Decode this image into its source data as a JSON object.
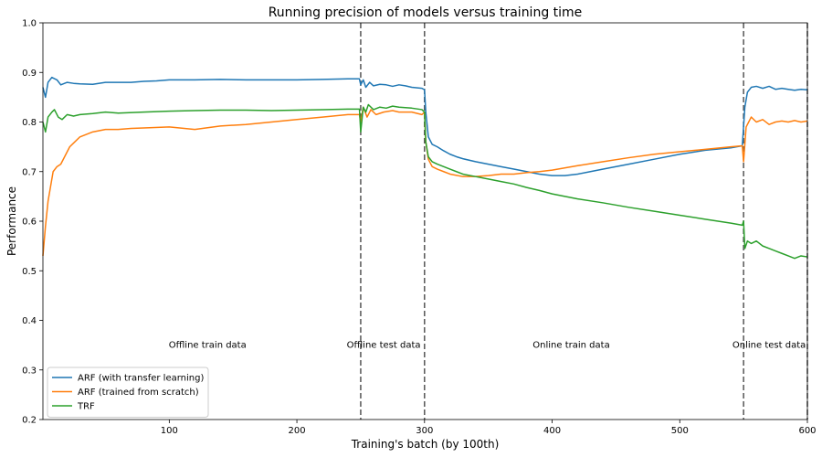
{
  "chart_data": {
    "type": "line",
    "title": "Running precision of models versus training time",
    "xlabel": "Training's batch (by 100th)",
    "ylabel": "Performance",
    "xlim": [
      1,
      600
    ],
    "ylim": [
      0.2,
      1.0
    ],
    "xticks": [
      100,
      200,
      300,
      400,
      500,
      600
    ],
    "yticks": [
      0.2,
      0.3,
      0.4,
      0.5,
      0.6,
      0.7,
      0.8,
      0.9,
      1.0
    ],
    "grid": false,
    "legend_position": "bottom-left",
    "vlines": [
      250,
      300,
      550,
      600
    ],
    "annotations": [
      {
        "text": "Offline train data",
        "x": 130,
        "y": 0.35
      },
      {
        "text": "Offline test data",
        "x": 268,
        "y": 0.35
      },
      {
        "text": "Online train data",
        "x": 415,
        "y": 0.35
      },
      {
        "text": "Online test data",
        "x": 570,
        "y": 0.35
      }
    ],
    "series": [
      {
        "name": "ARF (with transfer learning)",
        "color": "#1f77b4",
        "points": [
          [
            1,
            0.87
          ],
          [
            3,
            0.85
          ],
          [
            5,
            0.88
          ],
          [
            8,
            0.89
          ],
          [
            12,
            0.885
          ],
          [
            15,
            0.875
          ],
          [
            20,
            0.88
          ],
          [
            25,
            0.878
          ],
          [
            30,
            0.877
          ],
          [
            40,
            0.876
          ],
          [
            50,
            0.88
          ],
          [
            60,
            0.88
          ],
          [
            70,
            0.88
          ],
          [
            80,
            0.882
          ],
          [
            90,
            0.883
          ],
          [
            100,
            0.885
          ],
          [
            120,
            0.885
          ],
          [
            140,
            0.886
          ],
          [
            160,
            0.885
          ],
          [
            180,
            0.885
          ],
          [
            200,
            0.885
          ],
          [
            220,
            0.886
          ],
          [
            240,
            0.887
          ],
          [
            249,
            0.887
          ],
          [
            250,
            0.875
          ],
          [
            252,
            0.885
          ],
          [
            254,
            0.87
          ],
          [
            257,
            0.88
          ],
          [
            260,
            0.873
          ],
          [
            265,
            0.876
          ],
          [
            270,
            0.875
          ],
          [
            275,
            0.872
          ],
          [
            280,
            0.875
          ],
          [
            285,
            0.873
          ],
          [
            290,
            0.87
          ],
          [
            298,
            0.868
          ],
          [
            300,
            0.865
          ],
          [
            301,
            0.82
          ],
          [
            303,
            0.77
          ],
          [
            306,
            0.755
          ],
          [
            310,
            0.75
          ],
          [
            315,
            0.742
          ],
          [
            320,
            0.735
          ],
          [
            325,
            0.73
          ],
          [
            330,
            0.726
          ],
          [
            340,
            0.72
          ],
          [
            350,
            0.715
          ],
          [
            360,
            0.71
          ],
          [
            370,
            0.705
          ],
          [
            380,
            0.7
          ],
          [
            390,
            0.695
          ],
          [
            400,
            0.692
          ],
          [
            410,
            0.692
          ],
          [
            420,
            0.695
          ],
          [
            430,
            0.7
          ],
          [
            440,
            0.705
          ],
          [
            460,
            0.715
          ],
          [
            480,
            0.725
          ],
          [
            500,
            0.735
          ],
          [
            520,
            0.743
          ],
          [
            540,
            0.748
          ],
          [
            549,
            0.752
          ],
          [
            551,
            0.83
          ],
          [
            553,
            0.86
          ],
          [
            556,
            0.87
          ],
          [
            560,
            0.872
          ],
          [
            565,
            0.868
          ],
          [
            570,
            0.872
          ],
          [
            575,
            0.866
          ],
          [
            580,
            0.868
          ],
          [
            585,
            0.866
          ],
          [
            590,
            0.864
          ],
          [
            595,
            0.866
          ],
          [
            600,
            0.865
          ]
        ]
      },
      {
        "name": "ARF (trained from scratch)",
        "color": "#ff7f0e",
        "points": [
          [
            1,
            0.53
          ],
          [
            3,
            0.59
          ],
          [
            5,
            0.64
          ],
          [
            7,
            0.67
          ],
          [
            9,
            0.7
          ],
          [
            12,
            0.71
          ],
          [
            15,
            0.715
          ],
          [
            18,
            0.73
          ],
          [
            22,
            0.75
          ],
          [
            26,
            0.76
          ],
          [
            30,
            0.77
          ],
          [
            35,
            0.775
          ],
          [
            40,
            0.78
          ],
          [
            50,
            0.785
          ],
          [
            60,
            0.785
          ],
          [
            70,
            0.787
          ],
          [
            80,
            0.788
          ],
          [
            100,
            0.79
          ],
          [
            120,
            0.785
          ],
          [
            140,
            0.792
          ],
          [
            160,
            0.795
          ],
          [
            180,
            0.8
          ],
          [
            200,
            0.805
          ],
          [
            220,
            0.81
          ],
          [
            240,
            0.815
          ],
          [
            249,
            0.815
          ],
          [
            250,
            0.8
          ],
          [
            252,
            0.83
          ],
          [
            255,
            0.81
          ],
          [
            258,
            0.825
          ],
          [
            262,
            0.815
          ],
          [
            268,
            0.82
          ],
          [
            275,
            0.823
          ],
          [
            280,
            0.82
          ],
          [
            290,
            0.82
          ],
          [
            298,
            0.815
          ],
          [
            300,
            0.82
          ],
          [
            301,
            0.76
          ],
          [
            303,
            0.725
          ],
          [
            306,
            0.71
          ],
          [
            310,
            0.705
          ],
          [
            315,
            0.7
          ],
          [
            320,
            0.695
          ],
          [
            330,
            0.69
          ],
          [
            340,
            0.69
          ],
          [
            350,
            0.692
          ],
          [
            360,
            0.695
          ],
          [
            370,
            0.695
          ],
          [
            380,
            0.698
          ],
          [
            390,
            0.7
          ],
          [
            400,
            0.703
          ],
          [
            420,
            0.712
          ],
          [
            440,
            0.72
          ],
          [
            460,
            0.728
          ],
          [
            480,
            0.735
          ],
          [
            500,
            0.74
          ],
          [
            520,
            0.745
          ],
          [
            540,
            0.75
          ],
          [
            549,
            0.752
          ],
          [
            550,
            0.72
          ],
          [
            552,
            0.79
          ],
          [
            554,
            0.8
          ],
          [
            556,
            0.81
          ],
          [
            560,
            0.8
          ],
          [
            565,
            0.805
          ],
          [
            570,
            0.795
          ],
          [
            575,
            0.8
          ],
          [
            580,
            0.802
          ],
          [
            585,
            0.8
          ],
          [
            590,
            0.803
          ],
          [
            595,
            0.8
          ],
          [
            600,
            0.802
          ]
        ]
      },
      {
        "name": "TRF",
        "color": "#2ca02c",
        "points": [
          [
            1,
            0.8
          ],
          [
            3,
            0.78
          ],
          [
            5,
            0.81
          ],
          [
            8,
            0.82
          ],
          [
            10,
            0.825
          ],
          [
            13,
            0.81
          ],
          [
            16,
            0.805
          ],
          [
            20,
            0.815
          ],
          [
            25,
            0.812
          ],
          [
            30,
            0.815
          ],
          [
            40,
            0.817
          ],
          [
            50,
            0.82
          ],
          [
            60,
            0.818
          ],
          [
            80,
            0.82
          ],
          [
            100,
            0.822
          ],
          [
            120,
            0.823
          ],
          [
            140,
            0.824
          ],
          [
            160,
            0.824
          ],
          [
            180,
            0.823
          ],
          [
            200,
            0.824
          ],
          [
            220,
            0.825
          ],
          [
            240,
            0.826
          ],
          [
            249,
            0.826
          ],
          [
            250,
            0.78
          ],
          [
            252,
            0.83
          ],
          [
            254,
            0.82
          ],
          [
            256,
            0.835
          ],
          [
            260,
            0.825
          ],
          [
            265,
            0.83
          ],
          [
            270,
            0.828
          ],
          [
            275,
            0.832
          ],
          [
            280,
            0.83
          ],
          [
            290,
            0.828
          ],
          [
            298,
            0.825
          ],
          [
            300,
            0.82
          ],
          [
            301,
            0.76
          ],
          [
            303,
            0.73
          ],
          [
            306,
            0.72
          ],
          [
            310,
            0.715
          ],
          [
            315,
            0.71
          ],
          [
            320,
            0.705
          ],
          [
            325,
            0.7
          ],
          [
            330,
            0.695
          ],
          [
            340,
            0.69
          ],
          [
            350,
            0.685
          ],
          [
            360,
            0.68
          ],
          [
            370,
            0.675
          ],
          [
            380,
            0.668
          ],
          [
            390,
            0.662
          ],
          [
            400,
            0.655
          ],
          [
            420,
            0.645
          ],
          [
            440,
            0.637
          ],
          [
            460,
            0.628
          ],
          [
            480,
            0.62
          ],
          [
            500,
            0.612
          ],
          [
            520,
            0.604
          ],
          [
            540,
            0.596
          ],
          [
            549,
            0.592
          ],
          [
            550,
            0.6
          ],
          [
            551,
            0.545
          ],
          [
            553,
            0.56
          ],
          [
            556,
            0.555
          ],
          [
            560,
            0.56
          ],
          [
            565,
            0.55
          ],
          [
            570,
            0.545
          ],
          [
            575,
            0.54
          ],
          [
            580,
            0.535
          ],
          [
            585,
            0.53
          ],
          [
            590,
            0.525
          ],
          [
            595,
            0.53
          ],
          [
            600,
            0.528
          ]
        ]
      }
    ]
  }
}
